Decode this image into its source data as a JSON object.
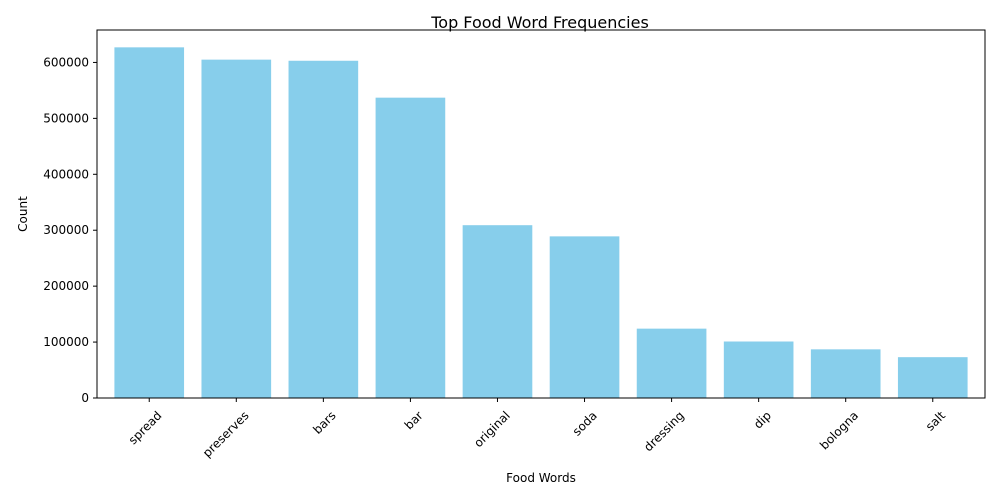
{
  "chart_data": {
    "type": "bar",
    "title": "Top Food Word Frequencies",
    "xlabel": "Food Words",
    "ylabel": "Count",
    "categories": [
      "spread",
      "preserves",
      "bars",
      "bar",
      "original",
      "soda",
      "dressing",
      "dip",
      "bologna",
      "salt"
    ],
    "values": [
      627000,
      605000,
      603000,
      537000,
      309000,
      289000,
      124000,
      101000,
      87000,
      73000
    ],
    "ylim": [
      0,
      658000
    ],
    "yticks": [
      0,
      100000,
      200000,
      300000,
      400000,
      500000,
      600000
    ],
    "bar_color": "#87ceeb",
    "grid": false,
    "xtick_rotation": 45
  }
}
